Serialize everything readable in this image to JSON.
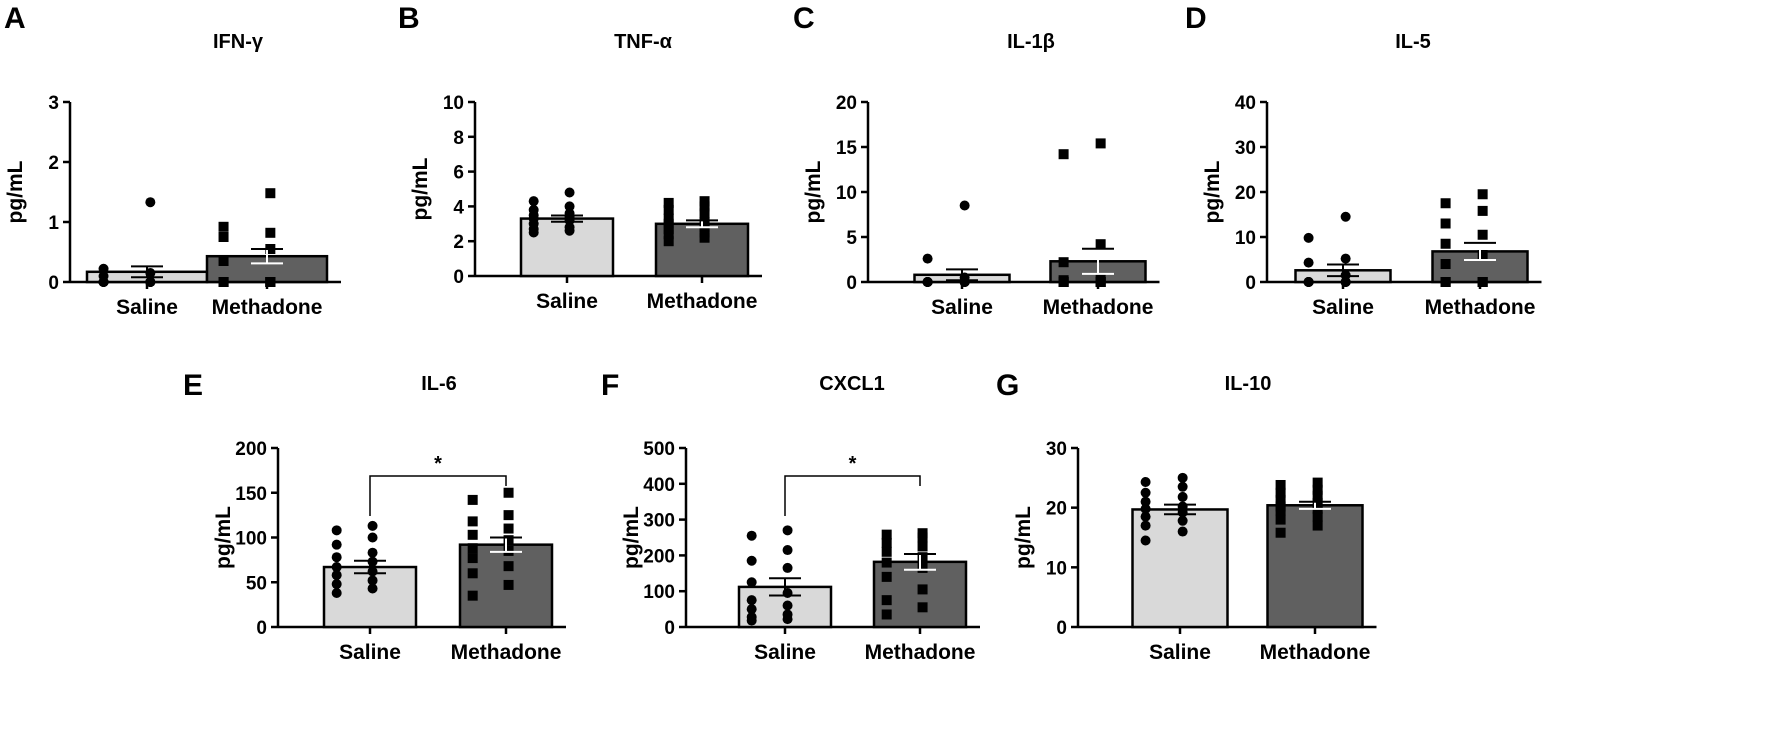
{
  "chart_data": [
    {
      "panel": "A",
      "title": "IFN-γ",
      "type": "bar",
      "ylabel": "pg/mL",
      "ylim": [
        0,
        3
      ],
      "yticks": [
        "0",
        "1",
        "2",
        "3"
      ],
      "categories": [
        "Saline",
        "Methadone"
      ],
      "series": [
        {
          "values": [
            0.17,
            0.43
          ],
          "sem": [
            0.09,
            0.12
          ]
        }
      ],
      "points": [
        [
          0,
          0,
          0,
          0,
          0,
          0,
          0,
          0,
          0,
          0,
          0.1,
          0.15,
          0.22,
          1.33
        ],
        [
          0,
          0,
          0,
          0,
          0,
          0,
          0,
          0,
          0.35,
          0.55,
          0.75,
          0.82,
          0.92,
          1.48
        ]
      ],
      "significance": ""
    },
    {
      "panel": "B",
      "title": "TNF-α",
      "type": "bar",
      "ylabel": "pg/mL",
      "ylim": [
        0,
        10
      ],
      "yticks": [
        "0",
        "2",
        "4",
        "6",
        "8",
        "10"
      ],
      "categories": [
        "Saline",
        "Methadone"
      ],
      "series": [
        {
          "values": [
            3.3,
            3.0
          ],
          "sem": [
            0.18,
            0.2
          ]
        }
      ],
      "points": [
        [
          2.5,
          2.6,
          2.7,
          2.8,
          3.0,
          3.2,
          3.3,
          3.4,
          3.5,
          3.6,
          3.8,
          4.0,
          4.3,
          4.8
        ],
        [
          2.0,
          2.2,
          2.4,
          2.5,
          2.7,
          2.8,
          3.0,
          3.1,
          3.3,
          3.6,
          3.8,
          4.0,
          4.2,
          4.3
        ]
      ],
      "significance": ""
    },
    {
      "panel": "C",
      "title": "IL-1β",
      "type": "bar",
      "ylabel": "pg/mL",
      "ylim": [
        0,
        20
      ],
      "yticks": [
        "0",
        "5",
        "10",
        "15",
        "20"
      ],
      "categories": [
        "Saline",
        "Methadone"
      ],
      "series": [
        {
          "values": [
            0.8,
            2.3
          ],
          "sem": [
            0.6,
            1.4
          ]
        }
      ],
      "points": [
        [
          0,
          0,
          0,
          0,
          0,
          0,
          0,
          0,
          0,
          0,
          0,
          0.5,
          2.6,
          8.5
        ],
        [
          0,
          0,
          0,
          0,
          0,
          0,
          0,
          0,
          0.2,
          0.4,
          2.2,
          4.2,
          14.2,
          15.4
        ]
      ],
      "significance": ""
    },
    {
      "panel": "D",
      "title": "IL-5",
      "type": "bar",
      "ylabel": "pg/mL",
      "ylim": [
        0,
        40
      ],
      "yticks": [
        "0",
        "10",
        "20",
        "30",
        "40"
      ],
      "categories": [
        "Saline",
        "Methadone"
      ],
      "series": [
        {
          "values": [
            2.6,
            6.8
          ],
          "sem": [
            1.3,
            1.9
          ]
        }
      ],
      "points": [
        [
          0,
          0,
          0,
          0,
          0,
          0,
          0,
          0,
          0,
          1.5,
          4.3,
          5.2,
          9.8,
          14.5
        ],
        [
          0,
          0,
          0,
          0,
          0,
          0,
          4.0,
          6.0,
          8.5,
          10.5,
          13.0,
          15.8,
          17.5,
          19.5
        ]
      ],
      "significance": ""
    },
    {
      "panel": "E",
      "title": "IL-6",
      "type": "bar",
      "ylabel": "pg/mL",
      "ylim": [
        0,
        200
      ],
      "yticks": [
        "0",
        "50",
        "100",
        "150",
        "200"
      ],
      "categories": [
        "Saline",
        "Methadone"
      ],
      "series": [
        {
          "values": [
            67,
            92
          ],
          "sem": [
            7,
            8
          ]
        }
      ],
      "points": [
        [
          38,
          43,
          48,
          52,
          58,
          62,
          67,
          73,
          78,
          83,
          92,
          100,
          108,
          113
        ],
        [
          35,
          47,
          60,
          68,
          77,
          85,
          88,
          97,
          103,
          110,
          118,
          125,
          142,
          150
        ]
      ],
      "significance": "*"
    },
    {
      "panel": "F",
      "title": "CXCL1",
      "type": "bar",
      "ylabel": "pg/mL",
      "ylim": [
        0,
        500
      ],
      "yticks": [
        "0",
        "100",
        "200",
        "300",
        "400",
        "500"
      ],
      "categories": [
        "Saline",
        "Methadone"
      ],
      "series": [
        {
          "values": [
            112,
            182
          ],
          "sem": [
            24,
            22
          ]
        }
      ],
      "points": [
        [
          18,
          22,
          28,
          35,
          50,
          60,
          75,
          95,
          125,
          165,
          185,
          215,
          255,
          270
        ],
        [
          35,
          55,
          75,
          105,
          140,
          165,
          180,
          195,
          210,
          225,
          235,
          250,
          258,
          262
        ]
      ],
      "significance": "*"
    },
    {
      "panel": "G",
      "title": "IL-10",
      "type": "bar",
      "ylabel": "pg/mL",
      "ylim": [
        0,
        30
      ],
      "yticks": [
        "0",
        "10",
        "20",
        "30"
      ],
      "categories": [
        "Saline",
        "Methadone"
      ],
      "series": [
        {
          "values": [
            19.7,
            20.4
          ],
          "sem": [
            0.8,
            0.6
          ]
        }
      ],
      "points": [
        [
          14.5,
          16.0,
          17.0,
          17.8,
          18.5,
          19.2,
          19.8,
          20.2,
          21.0,
          21.8,
          22.5,
          23.5,
          24.3,
          25.0
        ],
        [
          15.8,
          17.0,
          18.0,
          18.5,
          19.5,
          19.8,
          20.2,
          20.8,
          21.3,
          22.0,
          22.5,
          23.0,
          23.8,
          24.2
        ]
      ],
      "significance": ""
    }
  ],
  "colors": {
    "saline_bar": "#d9d9d9",
    "methadone_bar": "#606060",
    "marker": "#000000"
  },
  "markers": [
    "circle",
    "square"
  ]
}
